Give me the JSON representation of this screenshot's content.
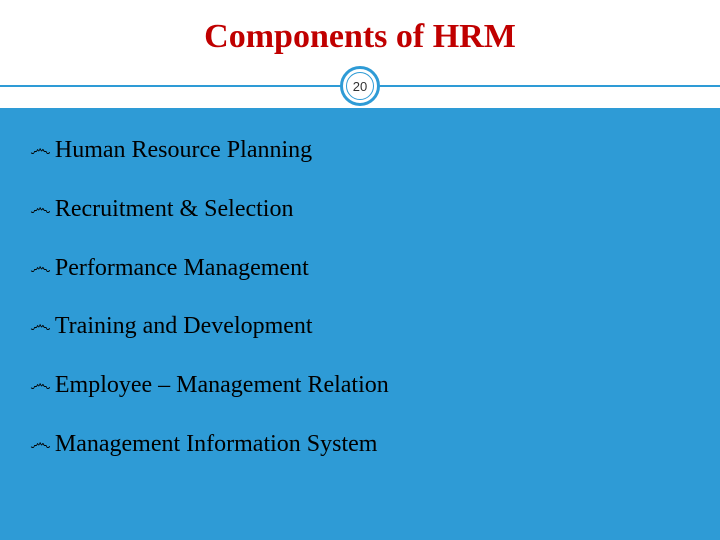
{
  "slide": {
    "title": "Components of HRM",
    "title_color": "#c00000",
    "title_fontsize": 34,
    "title_fontweight": "bold",
    "slide_number": "20",
    "accent_color": "#2e9bd6",
    "content_background": "#2e9bd6",
    "header_background": "#ffffff",
    "bullet_glyph": "෴",
    "bullets": [
      "Human Resource Planning",
      "Recruitment & Selection",
      "Performance Management",
      "Training and Development",
      "Employee – Management Relation",
      "Management Information System"
    ],
    "bullet_fontsize": 24,
    "bullet_color": "#000000",
    "bullet_spacing": 30
  }
}
